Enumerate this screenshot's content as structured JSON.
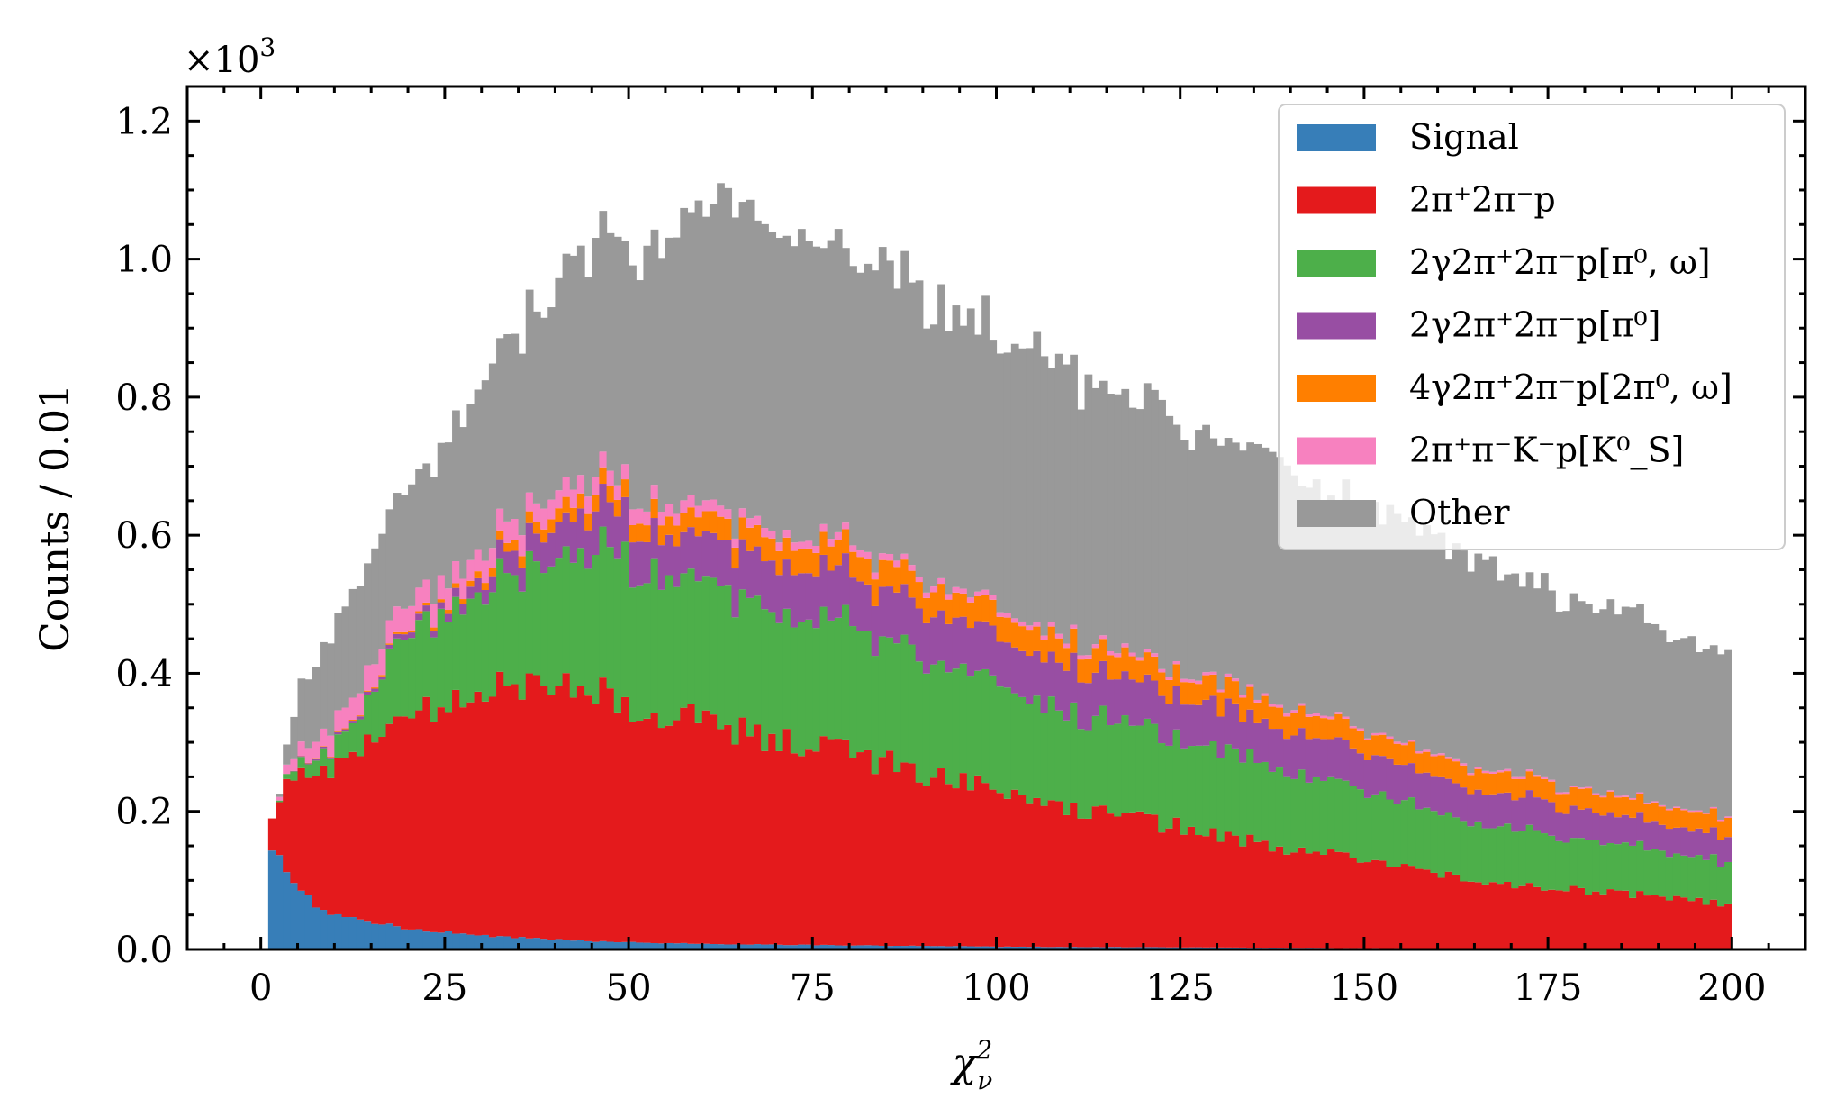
{
  "chart_data": {
    "type": "bar",
    "stacked": true,
    "histogram": true,
    "x_range": [
      0,
      200
    ],
    "bin_count": 200,
    "xlim": [
      -10,
      210
    ],
    "ylim": [
      0,
      1.25
    ],
    "y_multiplier": "×10",
    "y_multiplier_exp": "3",
    "xlabel": "χ",
    "xlabel_sup": "2",
    "xlabel_sub": "ν",
    "ylabel": "Counts / 0.01",
    "x_ticks": [
      0,
      25,
      50,
      75,
      100,
      125,
      150,
      175,
      200
    ],
    "x_tick_labels": [
      "0",
      "25",
      "50",
      "75",
      "100",
      "125",
      "150",
      "175",
      "200"
    ],
    "y_ticks": [
      0,
      0.2,
      0.4,
      0.6,
      0.8,
      1.0,
      1.2
    ],
    "y_tick_labels": [
      "0.0",
      "0.2",
      "0.4",
      "0.6",
      "0.8",
      "1.0",
      "1.2"
    ],
    "legend_placement": "top-right",
    "grid": false,
    "series": [
      {
        "name": "Signal",
        "color": "#377eb8",
        "anchors": [
          [
            0.5,
            0
          ],
          [
            1,
            0.12
          ],
          [
            2,
            0.15
          ],
          [
            3,
            0.12
          ],
          [
            5,
            0.09
          ],
          [
            8,
            0.06
          ],
          [
            12,
            0.045
          ],
          [
            20,
            0.03
          ],
          [
            30,
            0.02
          ],
          [
            45,
            0.012
          ],
          [
            60,
            0.008
          ],
          [
            100,
            0.004
          ],
          [
            150,
            0.002
          ],
          [
            200,
            0.001
          ]
        ]
      },
      {
        "name": "2π⁺2π⁻p",
        "color": "#e41a1c",
        "anchors": [
          [
            0.5,
            0
          ],
          [
            1,
            0.05
          ],
          [
            2,
            0.04
          ],
          [
            3,
            0.12
          ],
          [
            5,
            0.16
          ],
          [
            10,
            0.21
          ],
          [
            15,
            0.26
          ],
          [
            20,
            0.31
          ],
          [
            25,
            0.33
          ],
          [
            30,
            0.35
          ],
          [
            40,
            0.37
          ],
          [
            45,
            0.37
          ],
          [
            50,
            0.345
          ],
          [
            55,
            0.33
          ],
          [
            60,
            0.32
          ],
          [
            70,
            0.3
          ],
          [
            80,
            0.28
          ],
          [
            90,
            0.25
          ],
          [
            100,
            0.225
          ],
          [
            110,
            0.205
          ],
          [
            120,
            0.185
          ],
          [
            130,
            0.165
          ],
          [
            140,
            0.145
          ],
          [
            150,
            0.125
          ],
          [
            160,
            0.11
          ],
          [
            170,
            0.095
          ],
          [
            180,
            0.085
          ],
          [
            190,
            0.075
          ],
          [
            200,
            0.065
          ]
        ]
      },
      {
        "name": "2γ2π⁺2π⁻p[π⁰, ω]",
        "color": "#4daf4a",
        "anchors": [
          [
            0.5,
            0
          ],
          [
            2,
            0.0
          ],
          [
            3,
            0.005
          ],
          [
            5,
            0.015
          ],
          [
            10,
            0.03
          ],
          [
            15,
            0.06
          ],
          [
            17,
            0.1
          ],
          [
            20,
            0.12
          ],
          [
            30,
            0.15
          ],
          [
            40,
            0.18
          ],
          [
            45,
            0.2
          ],
          [
            50,
            0.21
          ],
          [
            55,
            0.21
          ],
          [
            60,
            0.2
          ],
          [
            70,
            0.19
          ],
          [
            80,
            0.18
          ],
          [
            90,
            0.17
          ],
          [
            100,
            0.155
          ],
          [
            110,
            0.14
          ],
          [
            120,
            0.13
          ],
          [
            130,
            0.12
          ],
          [
            140,
            0.11
          ],
          [
            150,
            0.1
          ],
          [
            160,
            0.09
          ],
          [
            170,
            0.082
          ],
          [
            180,
            0.074
          ],
          [
            190,
            0.068
          ],
          [
            200,
            0.06
          ]
        ]
      },
      {
        "name": "2γ2π⁺2π⁻p[π⁰]",
        "color": "#984ea3",
        "anchors": [
          [
            0.5,
            0
          ],
          [
            3,
            0.0
          ],
          [
            10,
            0.003
          ],
          [
            17,
            0.005
          ],
          [
            20,
            0.008
          ],
          [
            25,
            0.01
          ],
          [
            30,
            0.02
          ],
          [
            35,
            0.035
          ],
          [
            40,
            0.05
          ],
          [
            45,
            0.06
          ],
          [
            50,
            0.062
          ],
          [
            55,
            0.063
          ],
          [
            60,
            0.065
          ],
          [
            70,
            0.07
          ],
          [
            80,
            0.072
          ],
          [
            90,
            0.072
          ],
          [
            100,
            0.07
          ],
          [
            110,
            0.068
          ],
          [
            120,
            0.066
          ],
          [
            130,
            0.063
          ],
          [
            140,
            0.06
          ],
          [
            150,
            0.056
          ],
          [
            160,
            0.052
          ],
          [
            170,
            0.048
          ],
          [
            180,
            0.044
          ],
          [
            190,
            0.04
          ],
          [
            200,
            0.037
          ]
        ]
      },
      {
        "name": "4γ2π⁺2π⁻p[2π⁰, ω]",
        "color": "#ff7f00",
        "anchors": [
          [
            0.5,
            0
          ],
          [
            3,
            0.0
          ],
          [
            17,
            0.002
          ],
          [
            25,
            0.005
          ],
          [
            30,
            0.01
          ],
          [
            35,
            0.015
          ],
          [
            40,
            0.02
          ],
          [
            50,
            0.025
          ],
          [
            60,
            0.03
          ],
          [
            70,
            0.034
          ],
          [
            80,
            0.036
          ],
          [
            90,
            0.036
          ],
          [
            100,
            0.036
          ],
          [
            110,
            0.035
          ],
          [
            120,
            0.034
          ],
          [
            130,
            0.033
          ],
          [
            140,
            0.032
          ],
          [
            150,
            0.031
          ],
          [
            160,
            0.03
          ],
          [
            170,
            0.029
          ],
          [
            180,
            0.028
          ],
          [
            190,
            0.027
          ],
          [
            200,
            0.026
          ]
        ]
      },
      {
        "name": "2π⁺π⁻K⁻p[K⁰_S]",
        "color": "#f781bf",
        "anchors": [
          [
            0.5,
            0
          ],
          [
            2,
            0.0
          ],
          [
            3,
            0.01
          ],
          [
            5,
            0.02
          ],
          [
            10,
            0.03
          ],
          [
            15,
            0.035
          ],
          [
            20,
            0.035
          ],
          [
            30,
            0.03
          ],
          [
            40,
            0.028
          ],
          [
            50,
            0.022
          ],
          [
            60,
            0.016
          ],
          [
            70,
            0.012
          ],
          [
            80,
            0.01
          ],
          [
            90,
            0.008
          ],
          [
            100,
            0.007
          ],
          [
            110,
            0.006
          ],
          [
            120,
            0.005
          ],
          [
            130,
            0.004
          ],
          [
            140,
            0.004
          ],
          [
            150,
            0.003
          ],
          [
            160,
            0.003
          ],
          [
            170,
            0.003
          ],
          [
            180,
            0.002
          ],
          [
            190,
            0.002
          ],
          [
            200,
            0.002
          ]
        ]
      },
      {
        "name": "Other",
        "color": "#999999",
        "anchors": [
          [
            0.5,
            0
          ],
          [
            2,
            0.0
          ],
          [
            3,
            0.01
          ],
          [
            5,
            0.08
          ],
          [
            10,
            0.14
          ],
          [
            15,
            0.16
          ],
          [
            20,
            0.16
          ],
          [
            25,
            0.2
          ],
          [
            30,
            0.24
          ],
          [
            35,
            0.27
          ],
          [
            40,
            0.3
          ],
          [
            45,
            0.33
          ],
          [
            50,
            0.34
          ],
          [
            55,
            0.39
          ],
          [
            60,
            0.42
          ],
          [
            65,
            0.45
          ],
          [
            70,
            0.44
          ],
          [
            75,
            0.43
          ],
          [
            80,
            0.42
          ],
          [
            90,
            0.41
          ],
          [
            100,
            0.4
          ],
          [
            110,
            0.39
          ],
          [
            120,
            0.37
          ],
          [
            130,
            0.35
          ],
          [
            140,
            0.34
          ],
          [
            150,
            0.32
          ],
          [
            160,
            0.3
          ],
          [
            170,
            0.29
          ],
          [
            180,
            0.27
          ],
          [
            190,
            0.25
          ],
          [
            200,
            0.23
          ]
        ]
      }
    ]
  },
  "legend": {
    "items": [
      {
        "color": "#377eb8",
        "label": "Signal"
      },
      {
        "color": "#e41a1c",
        "label": "2π⁺2π⁻p"
      },
      {
        "color": "#4daf4a",
        "label": "2γ2π⁺2π⁻p[π⁰, ω]"
      },
      {
        "color": "#984ea3",
        "label": "2γ2π⁺2π⁻p[π⁰]"
      },
      {
        "color": "#ff7f00",
        "label": "4γ2π⁺2π⁻p[2π⁰, ω]"
      },
      {
        "color": "#f781bf",
        "label": "2π⁺π⁻K⁻p[K⁰_S]"
      },
      {
        "color": "#999999",
        "label": "Other"
      }
    ]
  }
}
